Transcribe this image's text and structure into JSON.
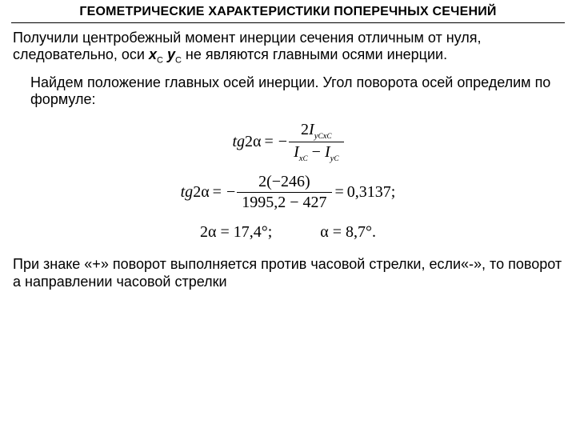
{
  "title": "ГЕОМЕТРИЧЕСКИЕ ХАРАКТЕРИСТИКИ ПОПЕРЕЧНЫХ СЕЧЕНИЙ",
  "para1_a": "Получили центробежный момент инерции сечения отличным от нуля, следовательно, оси ",
  "axis_x": "x",
  "axis_y": "y",
  "sub_c": "C",
  "para1_b": "   не являются главными осями инерции.",
  "para2": "Найдем положение главных осей инерции. Угол поворота осей определим по формуле:",
  "formula1": {
    "lhs_tg": "tg",
    "lhs_two": "2",
    "lhs_alpha": "α",
    "eq": "=",
    "minus": "−",
    "num_two": "2",
    "num_I": "I",
    "den_I1": "I",
    "den_minus": " − ",
    "den_I2": "I",
    "sub_xC": "x",
    "sub_yC": "y",
    "sub_C": "C"
  },
  "formula2": {
    "lhs_tg": "tg",
    "lhs_two": "2",
    "lhs_alpha": "α",
    "eq1": "=",
    "minus": "−",
    "num": "2(−246)",
    "den": "1995,2 − 427",
    "eq2": "=",
    "result": "0,3137;"
  },
  "row3": {
    "a_prefix": "2α",
    "a_eq": " = ",
    "a_val": "17,4°;",
    "b_prefix": "α",
    "b_eq": " = ",
    "b_val": "8,7°."
  },
  "para3": "При знаке «+» поворот выполняется против часовой стрелки, если«-», то поворот а направлении часовой стрелки",
  "colors": {
    "text": "#000000",
    "bg": "#ffffff",
    "rule": "#000000"
  },
  "typography": {
    "body_font": "Arial",
    "formula_font": "Times New Roman",
    "title_size_pt": 12,
    "body_size_pt": 14,
    "formula_size_pt": 15
  }
}
